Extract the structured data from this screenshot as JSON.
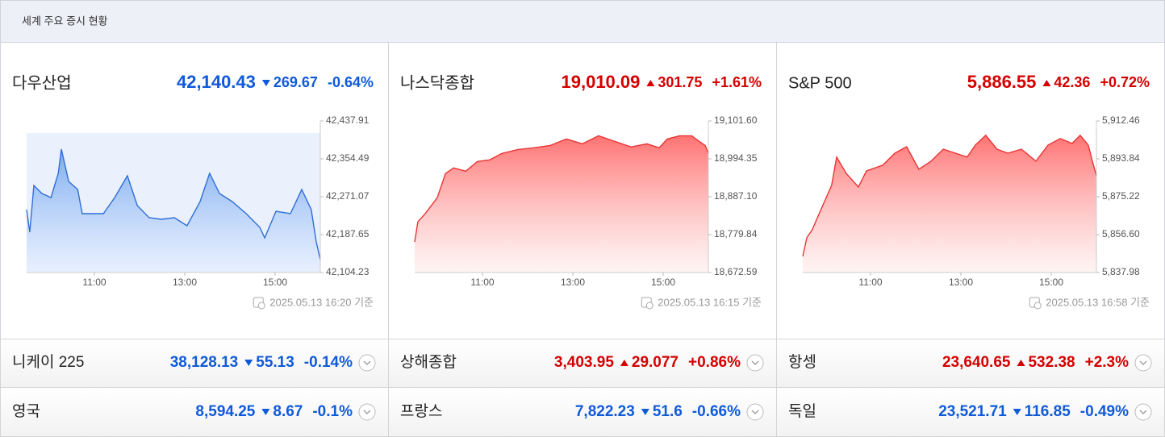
{
  "header": {
    "title": "세계 주요 증시 현황"
  },
  "main": [
    {
      "name": "다우산업",
      "price": "42,140.43",
      "change": "269.67",
      "change_pct": "-0.64%",
      "direction": "down",
      "timestamp": "2025.05.13 16:20 기준",
      "chart": {
        "type": "line",
        "color": "#2f6fd6",
        "x": [
          9.5,
          9.57,
          9.66,
          9.84,
          10.04,
          10.2,
          10.27,
          10.43,
          10.63,
          10.73,
          10.96,
          11.2,
          11.45,
          11.73,
          11.95,
          12.21,
          12.48,
          12.77,
          13.05,
          13.34,
          13.55,
          13.77,
          14.05,
          14.36,
          14.66,
          14.77,
          15.02,
          15.34,
          15.59,
          15.8,
          15.91,
          16.0
        ],
        "values": [
          42242.7,
          42193.0,
          42295.9,
          42278.2,
          42269.3,
          42322.5,
          42375.8,
          42304.8,
          42287.0,
          42233.8,
          42233.8,
          42233.8,
          42269.3,
          42317.2,
          42251.5,
          42224.9,
          42221.3,
          42224.9,
          42207.1,
          42260.4,
          42322.5,
          42278.2,
          42260.4,
          42233.8,
          42203.6,
          42180.5,
          42239.1,
          42233.8,
          42287.0,
          42242.7,
          42171.6,
          42132.6
        ],
        "xlim": [
          9.5,
          16
        ],
        "xticks": [
          {
            "value": 11,
            "label": "11:00"
          },
          {
            "value": 13,
            "label": "13:00"
          },
          {
            "value": 15,
            "label": "15:00"
          }
        ],
        "ylim": [
          42104.23,
          42437.91
        ],
        "yticks": [
          {
            "value": 42437.91,
            "label": "42,437.91"
          },
          {
            "value": 42354.49,
            "label": "42,354.49"
          },
          {
            "value": 42271.07,
            "label": "42,271.07"
          },
          {
            "value": 42187.65,
            "label": "42,187.65"
          },
          {
            "value": 42104.23,
            "label": "42,104.23"
          }
        ]
      }
    },
    {
      "name": "나스닥종합",
      "price": "19,010.09",
      "change": "301.75",
      "change_pct": "+1.61%",
      "direction": "up",
      "timestamp": "2025.05.13 16:15 기준",
      "chart": {
        "type": "line",
        "color": "#e83434",
        "x": [
          9.5,
          9.57,
          9.73,
          10.0,
          10.18,
          10.36,
          10.63,
          10.89,
          11.16,
          11.43,
          11.79,
          12.14,
          12.5,
          12.86,
          13.21,
          13.57,
          13.93,
          14.29,
          14.64,
          14.91,
          15.09,
          15.36,
          15.63,
          15.8,
          15.93,
          16.0
        ],
        "values": [
          18759.1,
          18816.0,
          18838.8,
          18884.3,
          18952.6,
          18968.6,
          18959.5,
          18986.8,
          18991.3,
          19009.6,
          19020.9,
          19025.5,
          19032.3,
          19050.5,
          19036.8,
          19059.6,
          19043.7,
          19027.8,
          19036.8,
          19025.5,
          19050.5,
          19059.6,
          19059.6,
          19043.7,
          19032.3,
          19009.6
        ],
        "xlim": [
          9.5,
          16
        ],
        "xticks": [
          {
            "value": 11,
            "label": "11:00"
          },
          {
            "value": 13,
            "label": "13:00"
          },
          {
            "value": 15,
            "label": "15:00"
          }
        ],
        "ylim": [
          18672.59,
          19101.6
        ],
        "yticks": [
          {
            "value": 19101.6,
            "label": "19,101.60"
          },
          {
            "value": 18994.35,
            "label": "18,994.35"
          },
          {
            "value": 18887.1,
            "label": "18,887.10"
          },
          {
            "value": 18779.84,
            "label": "18,779.84"
          },
          {
            "value": 18672.59,
            "label": "18,672.59"
          }
        ]
      }
    },
    {
      "name": "S&P 500",
      "price": "5,886.55",
      "change": "42.36",
      "change_pct": "+0.72%",
      "direction": "up",
      "timestamp": "2025.05.13 16:58 기준",
      "chart": {
        "type": "line",
        "color": "#e83434",
        "x": [
          9.5,
          9.59,
          9.71,
          9.84,
          10.02,
          10.14,
          10.25,
          10.46,
          10.73,
          10.91,
          11.27,
          11.54,
          11.8,
          12.07,
          12.34,
          12.61,
          12.88,
          13.14,
          13.32,
          13.55,
          13.8,
          14.04,
          14.34,
          14.66,
          14.93,
          15.2,
          15.46,
          15.64,
          15.82,
          15.91,
          16.0
        ],
        "values": [
          5845.9,
          5855.0,
          5859.0,
          5865.7,
          5874.8,
          5880.8,
          5894.7,
          5886.7,
          5880.0,
          5887.9,
          5890.7,
          5896.6,
          5899.8,
          5888.7,
          5892.7,
          5898.6,
          5896.6,
          5894.7,
          5900.6,
          5905.4,
          5898.6,
          5896.6,
          5898.6,
          5892.7,
          5900.6,
          5903.8,
          5901.4,
          5905.4,
          5900.6,
          5892.7,
          5885.5
        ],
        "xlim": [
          9.5,
          16
        ],
        "xticks": [
          {
            "value": 11,
            "label": "11:00"
          },
          {
            "value": 13,
            "label": "13:00"
          },
          {
            "value": 15,
            "label": "15:00"
          }
        ],
        "ylim": [
          5837.98,
          5912.46
        ],
        "yticks": [
          {
            "value": 5912.46,
            "label": "5,912.46"
          },
          {
            "value": 5893.84,
            "label": "5,893.84"
          },
          {
            "value": 5875.22,
            "label": "5,875.22"
          },
          {
            "value": 5856.6,
            "label": "5,856.60"
          },
          {
            "value": 5837.98,
            "label": "5,837.98"
          }
        ]
      }
    }
  ],
  "others": [
    {
      "name": "니케이 225",
      "price": "38,128.13",
      "change": "55.13",
      "change_pct": "-0.14%",
      "direction": "down"
    },
    {
      "name": "상해종합",
      "price": "3,403.95",
      "change": "29.077",
      "change_pct": "+0.86%",
      "direction": "up"
    },
    {
      "name": "항셍",
      "price": "23,640.65",
      "change": "532.38",
      "change_pct": "+2.3%",
      "direction": "up"
    },
    {
      "name": "영국",
      "price": "8,594.25",
      "change": "8.67",
      "change_pct": "-0.1%",
      "direction": "down"
    },
    {
      "name": "프랑스",
      "price": "7,822.23",
      "change": "51.6",
      "change_pct": "-0.66%",
      "direction": "down"
    },
    {
      "name": "독일",
      "price": "23,521.71",
      "change": "116.85",
      "change_pct": "-0.49%",
      "direction": "down"
    }
  ]
}
